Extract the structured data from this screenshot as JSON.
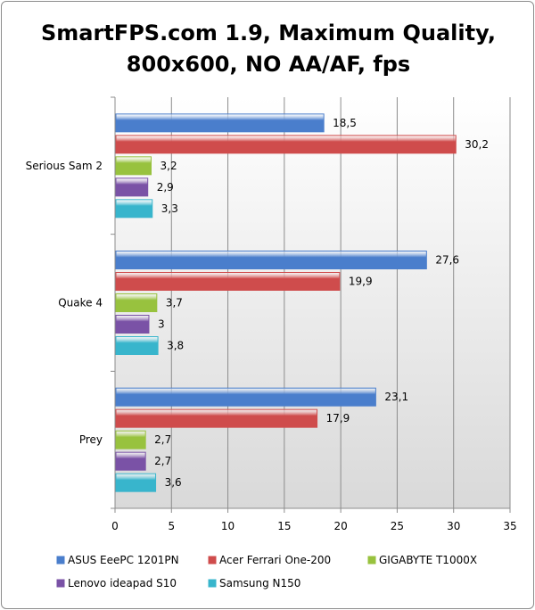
{
  "chart_data": {
    "type": "bar",
    "orientation": "horizontal",
    "title_lines": [
      "SmartFPS.com 1.9, Maximum Quality,",
      "800x600, NO AA/AF, fps"
    ],
    "categories": [
      "Serious Sam 2",
      "Quake 4",
      "Prey"
    ],
    "series": [
      {
        "name": "ASUS EeePC 1201PN",
        "color": "#4a7ecc",
        "values": [
          18.5,
          27.6,
          23.1
        ],
        "labels": [
          "18,5",
          "27,6",
          "23,1"
        ]
      },
      {
        "name": "Acer Ferrari One-200",
        "color": "#cf4c4c",
        "values": [
          30.2,
          19.9,
          17.9
        ],
        "labels": [
          "30,2",
          "19,9",
          "17,9"
        ]
      },
      {
        "name": "GIGABYTE T1000X",
        "color": "#98c23e",
        "values": [
          3.2,
          3.7,
          2.7
        ],
        "labels": [
          "3,2",
          "3,7",
          "2,7"
        ]
      },
      {
        "name": "Lenovo ideapad S10",
        "color": "#7a52a6",
        "values": [
          2.9,
          3,
          2.7
        ],
        "labels": [
          "2,9",
          "3",
          "2,7"
        ]
      },
      {
        "name": "Samsung N150",
        "color": "#38b5cc",
        "values": [
          3.3,
          3.8,
          3.6
        ],
        "labels": [
          "3,3",
          "3,8",
          "3,6"
        ]
      }
    ],
    "xlim": [
      0,
      35
    ],
    "xticks": [
      0,
      5,
      10,
      15,
      20,
      25,
      30,
      35
    ],
    "xlabel": "",
    "ylabel": "",
    "grid": true,
    "legend_position": "bottom"
  }
}
